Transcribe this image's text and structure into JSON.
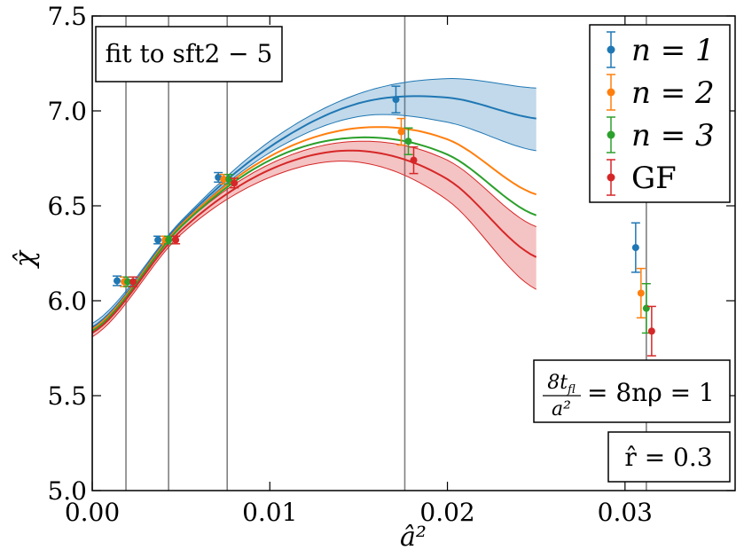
{
  "chart_data": {
    "type": "scatter",
    "title": "",
    "xlabel": "â²",
    "ylabel": "χ̂",
    "xlim": [
      0.0,
      0.0362
    ],
    "ylim": [
      5.0,
      7.5
    ],
    "xticks": [
      0.0,
      0.01,
      0.02,
      0.03
    ],
    "xtick_labels": [
      "0.00",
      "0.01",
      "0.02",
      "0.03"
    ],
    "yticks": [
      5.0,
      5.5,
      6.0,
      6.5,
      7.0,
      7.5
    ],
    "ytick_labels": [
      "5.0",
      "5.5",
      "6.0",
      "6.5",
      "7.0",
      "7.5"
    ],
    "vertical_lines": [
      0.0,
      0.0019,
      0.0043,
      0.0076,
      0.0176,
      0.0312
    ],
    "annotations": {
      "fit_label": "fit to sft2 − 5",
      "condition_label": "8t_fl / a² = 8nρ = 1",
      "condition_numerator": "8t",
      "condition_subscript": "fl",
      "condition_denominator": "a²",
      "condition_rhs": "= 8nρ = 1",
      "r_label": "r̂ = 0.3"
    },
    "legend": {
      "position": "top-right",
      "entries": [
        "n = 1",
        "n = 2",
        "n = 3",
        "GF"
      ]
    },
    "series": [
      {
        "name": "n = 1",
        "color": "#1f77b4",
        "points": [
          {
            "x": 0.0014,
            "y": 6.105,
            "err": 0.025
          },
          {
            "x": 0.0037,
            "y": 6.32,
            "err": 0.02
          },
          {
            "x": 0.0071,
            "y": 6.65,
            "err": 0.025
          },
          {
            "x": 0.0171,
            "y": 7.06,
            "err": 0.07
          },
          {
            "x": 0.0306,
            "y": 6.28,
            "err": 0.13
          }
        ],
        "fit": {
          "x": [
            0.0,
            0.005,
            0.01,
            0.015,
            0.02,
            0.025
          ],
          "y": [
            5.86,
            6.41,
            6.81,
            7.04,
            7.07,
            6.96
          ]
        },
        "band": {
          "x": [
            0.0,
            0.005,
            0.01,
            0.015,
            0.02,
            0.025
          ],
          "lower": [
            5.84,
            6.4,
            6.78,
            6.97,
            6.94,
            6.79
          ],
          "upper": [
            5.88,
            6.42,
            6.84,
            7.09,
            7.17,
            7.12
          ]
        }
      },
      {
        "name": "n = 2",
        "color": "#ff7f0e",
        "points": [
          {
            "x": 0.0018,
            "y": 6.1,
            "err": 0.025
          },
          {
            "x": 0.0041,
            "y": 6.32,
            "err": 0.02
          },
          {
            "x": 0.0074,
            "y": 6.64,
            "err": 0.025
          },
          {
            "x": 0.0174,
            "y": 6.89,
            "err": 0.07
          },
          {
            "x": 0.0309,
            "y": 6.04,
            "err": 0.13
          }
        ],
        "fit": {
          "x": [
            0.0,
            0.005,
            0.01,
            0.015,
            0.02,
            0.025
          ],
          "y": [
            5.85,
            6.4,
            6.76,
            6.91,
            6.85,
            6.56
          ]
        }
      },
      {
        "name": "n = 3",
        "color": "#2ca02c",
        "points": [
          {
            "x": 0.002,
            "y": 6.1,
            "err": 0.025
          },
          {
            "x": 0.0043,
            "y": 6.32,
            "err": 0.02
          },
          {
            "x": 0.0077,
            "y": 6.64,
            "err": 0.025
          },
          {
            "x": 0.0178,
            "y": 6.84,
            "err": 0.07
          },
          {
            "x": 0.0312,
            "y": 5.96,
            "err": 0.13
          }
        ],
        "fit": {
          "x": [
            0.0,
            0.005,
            0.01,
            0.015,
            0.02,
            0.025
          ],
          "y": [
            5.84,
            6.39,
            6.74,
            6.86,
            6.77,
            6.45
          ]
        }
      },
      {
        "name": "GF",
        "color": "#d62728",
        "points": [
          {
            "x": 0.0023,
            "y": 6.1,
            "err": 0.025
          },
          {
            "x": 0.0047,
            "y": 6.32,
            "err": 0.02
          },
          {
            "x": 0.008,
            "y": 6.62,
            "err": 0.025
          },
          {
            "x": 0.0181,
            "y": 6.74,
            "err": 0.07
          },
          {
            "x": 0.0315,
            "y": 5.84,
            "err": 0.13
          }
        ],
        "fit": {
          "x": [
            0.0,
            0.005,
            0.01,
            0.015,
            0.02,
            0.025
          ],
          "y": [
            5.83,
            6.37,
            6.69,
            6.79,
            6.64,
            6.23
          ]
        },
        "band": {
          "x": [
            0.0,
            0.005,
            0.01,
            0.015,
            0.02,
            0.025
          ],
          "lower": [
            5.81,
            6.35,
            6.65,
            6.73,
            6.53,
            6.06
          ],
          "upper": [
            5.85,
            6.39,
            6.72,
            6.84,
            6.74,
            6.39
          ]
        }
      }
    ]
  }
}
